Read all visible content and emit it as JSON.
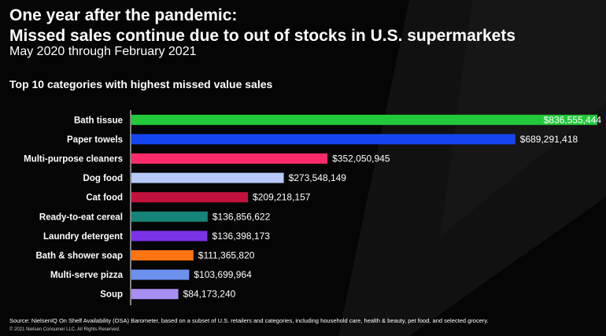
{
  "header": {
    "title_line1": "One year after the pandemic:",
    "title_line2": "Missed sales continue due to out of stocks in U.S. supermarkets",
    "subtitle": "May 2020 through February 2021",
    "chart_heading": "Top 10 categories with highest missed value sales"
  },
  "footer": {
    "source": "Source: NielsenIQ On Shelf Availability (OSA) Barometer, based on a subset of U.S. retailers and categories, including household care, health & beauty, pet food, and selected grocery.",
    "copyright": "© 2021 Nielsen Consumer LLC. All Rights Reserved."
  },
  "chart_data": {
    "type": "bar",
    "orientation": "horizontal",
    "title": "Top 10 categories with highest missed value sales",
    "xlabel": "",
    "ylabel": "",
    "grid": false,
    "legend": "none",
    "xlim": [
      0,
      836555444
    ],
    "categories": [
      "Bath tissue",
      "Paper towels",
      "Multi-purpose cleaners",
      "Dog food",
      "Cat food",
      "Ready-to-eat cereal",
      "Laundry detergent",
      "Bath & shower soap",
      "Multi-serve pizza",
      "Soup"
    ],
    "values": [
      836555444,
      689291418,
      352050945,
      273548149,
      209218157,
      136856622,
      136398173,
      111365820,
      103699964,
      84173240
    ],
    "labels": [
      "$836,555,444",
      "$689,291,418",
      "$352,050,945",
      "$273,548,149",
      "$209,218,157",
      "$136,856,622",
      "$136,398,173",
      "$111,365,820",
      "$103,699,964",
      "$84,173,240"
    ],
    "colors": [
      "#22c93a",
      "#1447f0",
      "#ff2a6a",
      "#b7c8fb",
      "#c2123c",
      "#168478",
      "#7b33e6",
      "#ff7410",
      "#6c90ee",
      "#a98ef2"
    ]
  }
}
